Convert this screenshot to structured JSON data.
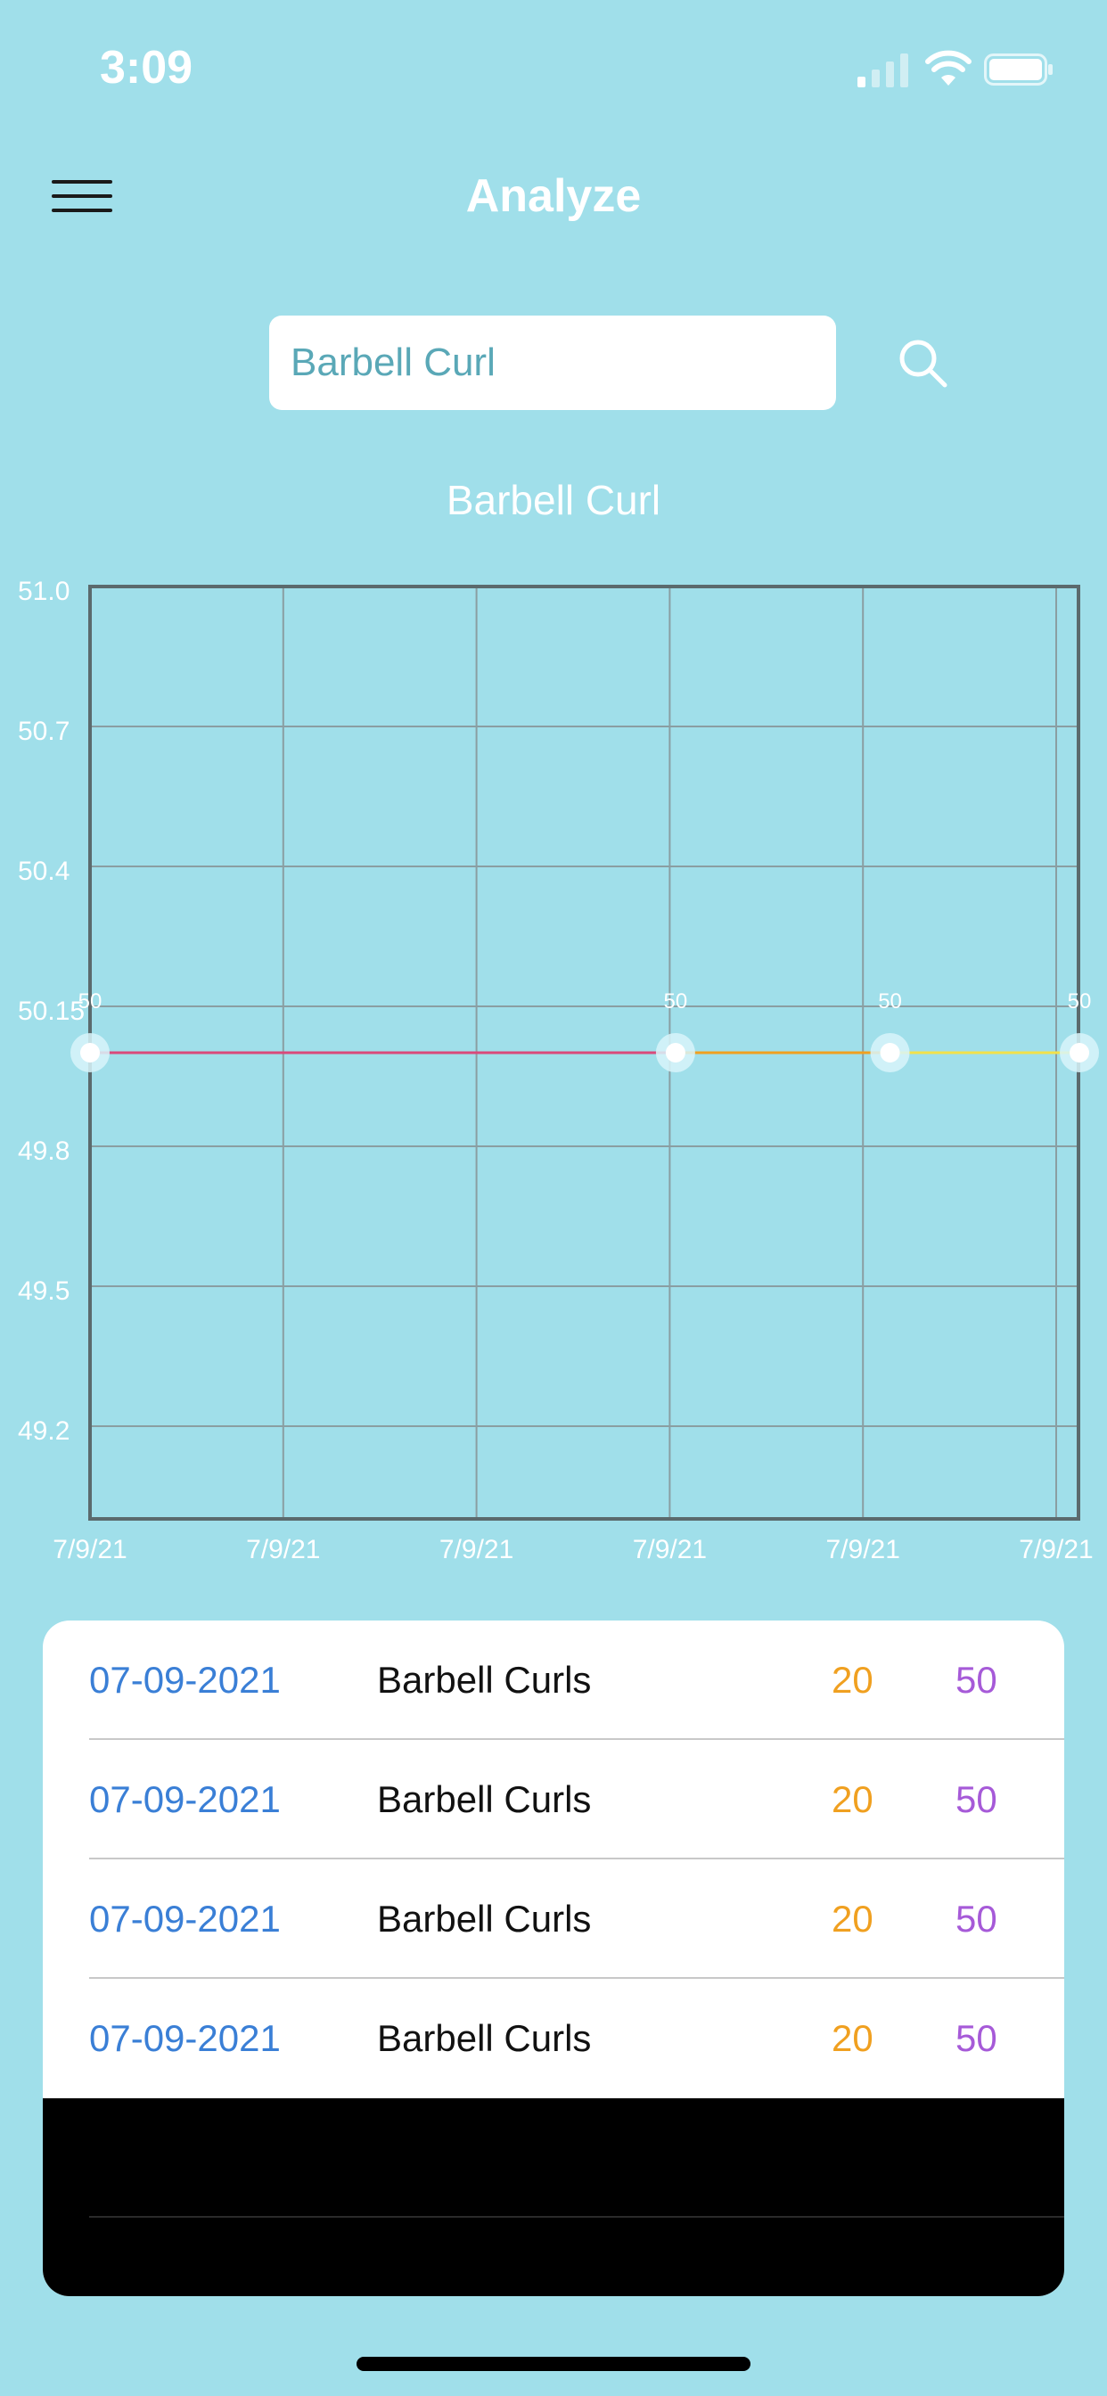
{
  "status_bar": {
    "time": "3:09"
  },
  "header": {
    "title": "Analyze"
  },
  "search": {
    "value": "Barbell Curl",
    "placeholder": ""
  },
  "chart_data": {
    "type": "line",
    "title": "Barbell Curl",
    "x_tick_labels": [
      "7/9/21",
      "7/9/21",
      "7/9/21",
      "7/9/21",
      "7/9/21",
      "7/9/21"
    ],
    "y_tick_labels": [
      "51.0",
      "50.7",
      "50.4",
      "50.15",
      "49.8",
      "49.5",
      "49.2"
    ],
    "ylim": [
      49.0,
      51.0
    ],
    "grid": true,
    "points": [
      {
        "x_index": 0.0,
        "y": 50,
        "label": "50"
      },
      {
        "x_index": 3.03,
        "y": 50,
        "label": "50"
      },
      {
        "x_index": 4.14,
        "y": 50,
        "label": "50"
      },
      {
        "x_index": 5.12,
        "y": 50,
        "label": "50"
      }
    ],
    "segment_colors": [
      "#d9497a",
      "#f0a020",
      "#f2e14a"
    ],
    "point_color": "#ffffff"
  },
  "table": {
    "rows": [
      {
        "date": "07-09-2021",
        "exercise": "Barbell Curls",
        "reps": "20",
        "weight": "50"
      },
      {
        "date": "07-09-2021",
        "exercise": "Barbell Curls",
        "reps": "20",
        "weight": "50"
      },
      {
        "date": "07-09-2021",
        "exercise": "Barbell Curls",
        "reps": "20",
        "weight": "50"
      },
      {
        "date": "07-09-2021",
        "exercise": "Barbell Curls",
        "reps": "20",
        "weight": "50"
      }
    ]
  }
}
